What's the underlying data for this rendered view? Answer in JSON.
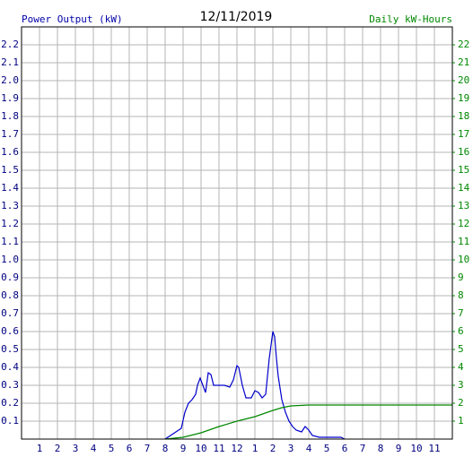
{
  "chart_data": {
    "type": "line",
    "title": "12/11/2019",
    "ylabel": "Power Output (kW)",
    "y2label": "Daily kW-Hours",
    "xlim": [
      0,
      24
    ],
    "xticks": [
      1,
      2,
      3,
      4,
      5,
      6,
      7,
      8,
      9,
      10,
      11,
      12,
      {
        "value": 13,
        "label": "1"
      },
      {
        "value": 14,
        "label": "2"
      },
      {
        "value": 15,
        "label": "3"
      },
      {
        "value": 16,
        "label": "4"
      },
      {
        "value": 17,
        "label": "5"
      },
      {
        "value": 18,
        "label": "6"
      },
      {
        "value": 19,
        "label": "7"
      },
      {
        "value": 20,
        "label": "8"
      },
      {
        "value": 21,
        "label": "9"
      },
      {
        "value": 22,
        "label": "10"
      },
      {
        "value": 23,
        "label": "11"
      }
    ],
    "ylim": [
      0,
      2.3
    ],
    "yticks": [
      0.1,
      0.2,
      0.3,
      0.4,
      0.5,
      0.6,
      0.7,
      0.8,
      0.9,
      {
        "value": 1,
        "label": "1.0"
      },
      1.1,
      1.2,
      1.3,
      1.4,
      1.5,
      1.6,
      1.7,
      1.8,
      1.9,
      {
        "value": 2,
        "label": "2.0"
      },
      2.1,
      2.2
    ],
    "y2lim": [
      0,
      23
    ],
    "y2ticks": [
      1,
      2,
      3,
      4,
      5,
      6,
      7,
      8,
      9,
      10,
      11,
      12,
      13,
      14,
      15,
      16,
      17,
      18,
      19,
      20,
      21,
      22
    ],
    "grid": true,
    "series": [
      {
        "color": "#0000cc",
        "x": [
          8.0,
          8.3,
          8.6,
          8.9,
          9.1,
          9.3,
          9.5,
          9.7,
          9.8,
          9.95,
          10.1,
          10.25,
          10.4,
          10.55,
          10.7,
          11.0,
          11.3,
          11.6,
          11.8,
          12.0,
          12.1,
          12.3,
          12.5,
          12.8,
          13.0,
          13.2,
          13.4,
          13.6,
          13.8,
          14.0,
          14.1,
          14.2,
          14.3,
          14.5,
          14.7,
          14.9,
          15.1,
          15.3,
          15.6,
          15.8,
          16.0,
          16.2,
          16.6,
          17.0,
          17.8,
          18.0
        ],
        "values": [
          0,
          0.02,
          0.04,
          0.06,
          0.15,
          0.2,
          0.22,
          0.25,
          0.3,
          0.34,
          0.3,
          0.26,
          0.37,
          0.36,
          0.3,
          0.3,
          0.3,
          0.29,
          0.33,
          0.41,
          0.4,
          0.3,
          0.23,
          0.23,
          0.27,
          0.26,
          0.23,
          0.25,
          0.45,
          0.6,
          0.57,
          0.45,
          0.35,
          0.22,
          0.15,
          0.1,
          0.07,
          0.05,
          0.04,
          0.07,
          0.05,
          0.02,
          0.01,
          0.01,
          0.01,
          0
        ]
      },
      {
        "color": "#008800",
        "axis": "y2",
        "x": [
          8,
          9,
          10,
          11,
          12,
          13,
          14,
          14.5,
          15,
          16,
          24
        ],
        "values": [
          0,
          0.1,
          0.35,
          0.7,
          1.0,
          1.25,
          1.6,
          1.75,
          1.85,
          1.9,
          1.9
        ]
      }
    ]
  }
}
